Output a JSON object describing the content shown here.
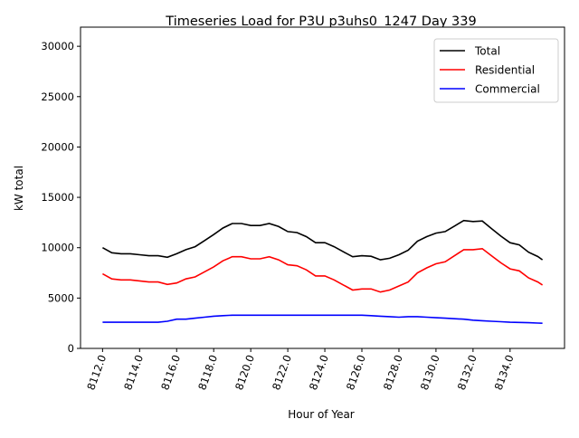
{
  "chart_data": {
    "type": "line",
    "title": "Timeseries Load for P3U p3uhs0_1247  Day 339",
    "xlabel": "Hour of Year",
    "ylabel": "kW total",
    "xlim": [
      8110.81,
      8136.94
    ],
    "ylim": [
      0,
      31900
    ],
    "xticks": [
      8112,
      8114,
      8116,
      8118,
      8120,
      8122,
      8124,
      8126,
      8128,
      8130,
      8132,
      8134
    ],
    "xtick_labels": [
      "8112.0",
      "8114.0",
      "8116.0",
      "8118.0",
      "8120.0",
      "8122.0",
      "8124.0",
      "8126.0",
      "8128.0",
      "8130.0",
      "8132.0",
      "8134.0"
    ],
    "yticks": [
      0,
      5000,
      10000,
      15000,
      20000,
      25000,
      30000
    ],
    "ytick_labels": [
      "0",
      "5000",
      "10000",
      "15000",
      "20000",
      "25000",
      "30000"
    ],
    "grid": false,
    "legend_position": "top-right",
    "x": [
      8112,
      8112.5,
      8113,
      8113.5,
      8114,
      8114.5,
      8115,
      8115.5,
      8116,
      8116.5,
      8117,
      8117.5,
      8118,
      8118.5,
      8119,
      8119.5,
      8120,
      8120.5,
      8121,
      8121.5,
      8122,
      8122.5,
      8123,
      8123.5,
      8124,
      8124.5,
      8125,
      8125.5,
      8126,
      8126.5,
      8127,
      8127.5,
      8128,
      8128.5,
      8129,
      8129.5,
      8130,
      8130.5,
      8131,
      8131.5,
      8132,
      8132.5,
      8133,
      8133.5,
      8134,
      8134.5,
      8135,
      8135.5,
      8135.75
    ],
    "series": [
      {
        "name": "Total",
        "color": "#000000",
        "values": [
          10000,
          9500,
          9400,
          9400,
          9300,
          9200,
          9200,
          9050,
          9400,
          9800,
          10100,
          10700,
          11300,
          11950,
          12400,
          12400,
          12200,
          12200,
          12400,
          12100,
          11600,
          11500,
          11100,
          10500,
          10500,
          10100,
          9600,
          9100,
          9200,
          9150,
          8800,
          8950,
          9300,
          9750,
          10650,
          11100,
          11450,
          11600,
          12150,
          12700,
          12600,
          12650,
          11900,
          11150,
          10500,
          10280,
          9550,
          9120,
          8800
        ]
      },
      {
        "name": "Residential",
        "color": "#ff0000",
        "values": [
          7400,
          6900,
          6800,
          6800,
          6700,
          6600,
          6600,
          6350,
          6500,
          6900,
          7100,
          7600,
          8100,
          8700,
          9100,
          9100,
          8900,
          8900,
          9100,
          8800,
          8300,
          8200,
          7800,
          7200,
          7200,
          6800,
          6300,
          5800,
          5900,
          5900,
          5600,
          5800,
          6200,
          6600,
          7500,
          8000,
          8400,
          8600,
          9200,
          9800,
          9800,
          9900,
          9200,
          8500,
          7900,
          7700,
          7000,
          6600,
          6300
        ]
      },
      {
        "name": "Commercial",
        "color": "#0000ff",
        "values": [
          2600,
          2600,
          2600,
          2600,
          2600,
          2600,
          2600,
          2700,
          2900,
          2900,
          3000,
          3100,
          3200,
          3250,
          3300,
          3300,
          3300,
          3300,
          3300,
          3300,
          3300,
          3300,
          3300,
          3300,
          3300,
          3300,
          3300,
          3300,
          3300,
          3250,
          3200,
          3150,
          3100,
          3150,
          3150,
          3100,
          3050,
          3000,
          2950,
          2900,
          2800,
          2750,
          2700,
          2650,
          2600,
          2580,
          2550,
          2520,
          2500
        ]
      }
    ]
  }
}
